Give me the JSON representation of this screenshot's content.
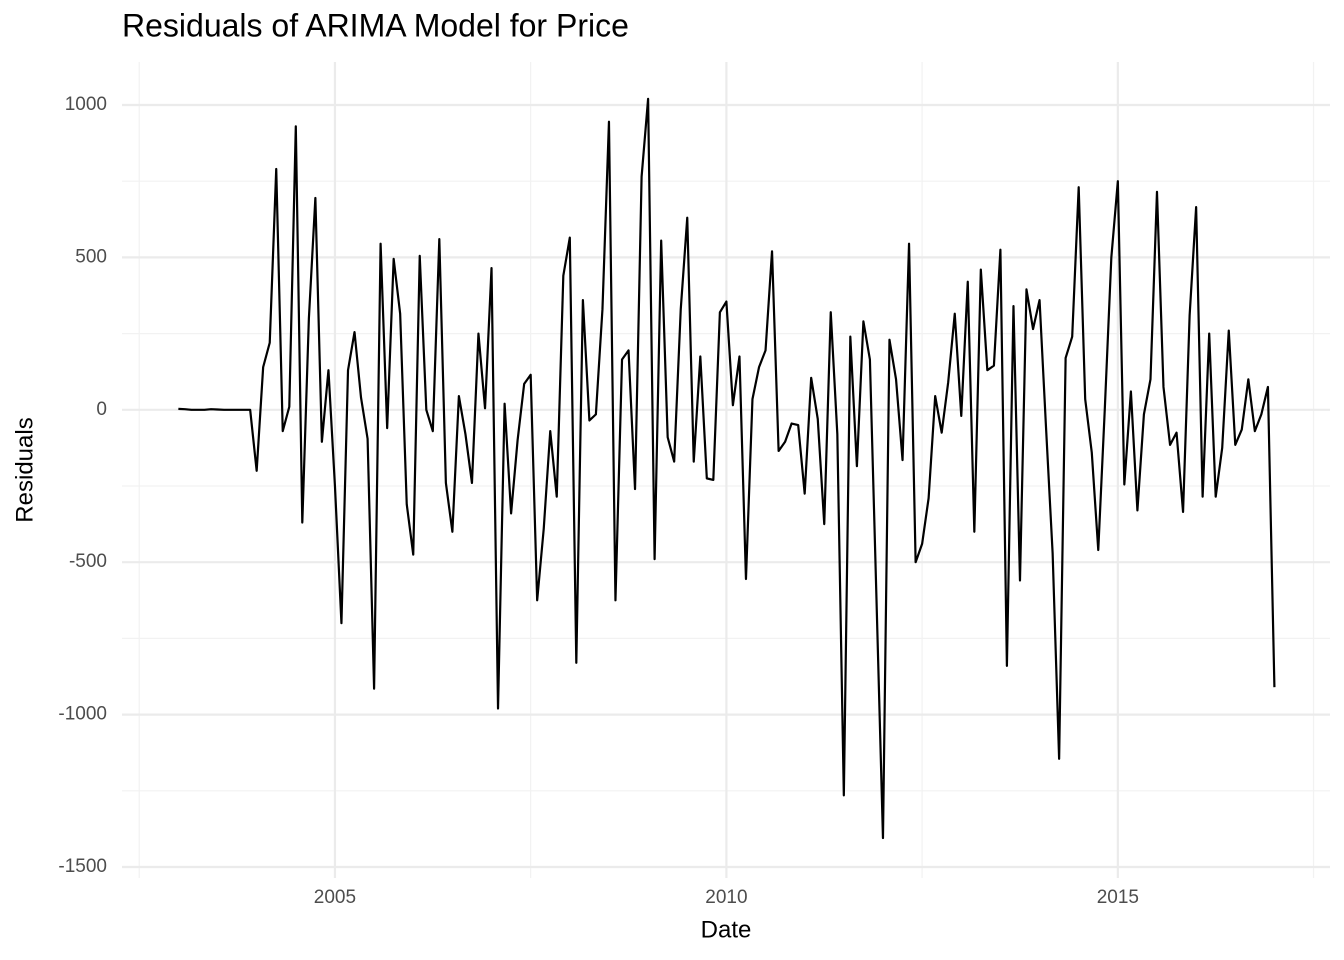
{
  "chart_data": {
    "type": "line",
    "title": "Residuals of ARIMA Model for Price",
    "x_label": "Date",
    "y_label": "Residuals",
    "xlim": [
      2002.28,
      2017.71
    ],
    "ylim": [
      -1536,
      1141
    ],
    "xticks": [
      2005,
      2010,
      2015
    ],
    "yticks": [
      -1500,
      -1000,
      -500,
      0,
      500,
      1000
    ],
    "x_minor_ticks": [
      2002.5,
      2007.5,
      2012.5,
      2017.5
    ],
    "y_minor_ticks": [
      -1250,
      -750,
      -250,
      250,
      750
    ],
    "grid": true,
    "x": [
      2003,
      2003.083,
      2003.167,
      2003.25,
      2003.333,
      2003.417,
      2003.5,
      2003.583,
      2003.667,
      2003.75,
      2003.833,
      2003.917,
      2004,
      2004.083,
      2004.167,
      2004.25,
      2004.333,
      2004.417,
      2004.5,
      2004.583,
      2004.667,
      2004.75,
      2004.833,
      2004.917,
      2005,
      2005.083,
      2005.167,
      2005.25,
      2005.333,
      2005.417,
      2005.5,
      2005.583,
      2005.667,
      2005.75,
      2005.833,
      2005.917,
      2006,
      2006.083,
      2006.167,
      2006.25,
      2006.333,
      2006.417,
      2006.5,
      2006.583,
      2006.667,
      2006.75,
      2006.833,
      2006.917,
      2007,
      2007.083,
      2007.167,
      2007.25,
      2007.333,
      2007.417,
      2007.5,
      2007.583,
      2007.667,
      2007.75,
      2007.833,
      2007.917,
      2008,
      2008.083,
      2008.167,
      2008.25,
      2008.333,
      2008.417,
      2008.5,
      2008.583,
      2008.667,
      2008.75,
      2008.833,
      2008.917,
      2009,
      2009.083,
      2009.167,
      2009.25,
      2009.333,
      2009.417,
      2009.5,
      2009.583,
      2009.667,
      2009.75,
      2009.833,
      2009.917,
      2010,
      2010.083,
      2010.167,
      2010.25,
      2010.333,
      2010.417,
      2010.5,
      2010.583,
      2010.667,
      2010.75,
      2010.833,
      2010.917,
      2011,
      2011.083,
      2011.167,
      2011.25,
      2011.333,
      2011.417,
      2011.5,
      2011.583,
      2011.667,
      2011.75,
      2011.833,
      2011.917,
      2012,
      2012.083,
      2012.167,
      2012.25,
      2012.333,
      2012.417,
      2012.5,
      2012.583,
      2012.667,
      2012.75,
      2012.833,
      2012.917,
      2013,
      2013.083,
      2013.167,
      2013.25,
      2013.333,
      2013.417,
      2013.5,
      2013.583,
      2013.667,
      2013.75,
      2013.833,
      2013.917,
      2014,
      2014.083,
      2014.167,
      2014.25,
      2014.333,
      2014.417,
      2014.5,
      2014.583,
      2014.667,
      2014.75,
      2014.833,
      2014.917,
      2015,
      2015.083,
      2015.167,
      2015.25,
      2015.333,
      2015.417,
      2015.5,
      2015.583,
      2015.667,
      2015.75,
      2015.833,
      2015.917,
      2016,
      2016.083,
      2016.167,
      2016.25,
      2016.333,
      2016.417,
      2016.5,
      2016.583,
      2016.667,
      2016.75,
      2016.833,
      2016.917,
      2017
    ],
    "series": [
      {
        "name": "Residuals",
        "color": "#000000",
        "values": [
          3,
          2,
          0,
          0,
          0,
          2,
          1,
          0,
          0,
          0,
          0,
          0,
          -200,
          140,
          220,
          790,
          -70,
          10,
          930,
          -370,
          300,
          695,
          -105,
          130,
          -250,
          -700,
          130,
          255,
          40,
          -95,
          -915,
          545,
          -60,
          495,
          315,
          -310,
          -475,
          505,
          0,
          -70,
          560,
          -240,
          -400,
          45,
          -80,
          -240,
          250,
          5,
          465,
          -980,
          20,
          -340,
          -100,
          85,
          115,
          -625,
          -390,
          -70,
          -285,
          440,
          565,
          -830,
          360,
          -35,
          -15,
          330,
          945,
          -625,
          165,
          195,
          -260,
          765,
          1020,
          -490,
          555,
          -90,
          -170,
          330,
          630,
          -170,
          175,
          -225,
          -230,
          320,
          355,
          15,
          175,
          -555,
          35,
          140,
          195,
          520,
          -135,
          -105,
          -45,
          -50,
          -275,
          105,
          -30,
          -375,
          320,
          -80,
          -1265,
          240,
          -185,
          290,
          165,
          -620,
          -1405,
          230,
          100,
          -165,
          545,
          -500,
          -440,
          -290,
          45,
          -75,
          90,
          315,
          -20,
          420,
          -400,
          460,
          130,
          145,
          525,
          -840,
          340,
          -560,
          395,
          265,
          360,
          -60,
          -470,
          -1145,
          170,
          240,
          730,
          35,
          -140,
          -460,
          0,
          500,
          750,
          -245,
          60,
          -330,
          -15,
          100,
          715,
          75,
          -115,
          -75,
          -335,
          310,
          665,
          -285,
          250,
          -285,
          -125,
          260,
          -115,
          -65,
          100,
          -70,
          -15,
          75,
          -910
        ]
      }
    ]
  }
}
